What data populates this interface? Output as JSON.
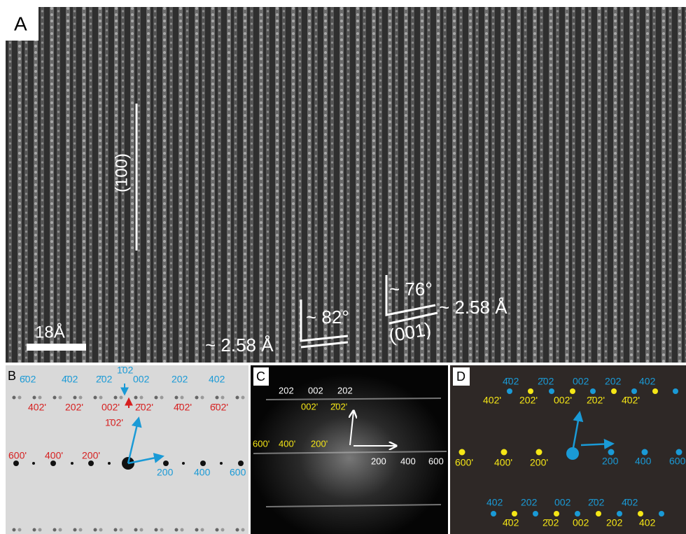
{
  "panel_a": {
    "label": "A",
    "direction_label": "(100)",
    "scale_bar": "18Å",
    "angle_1": "~ 82°",
    "spacing_1": "~ 2.58 Å",
    "angle_2": "~ 76°",
    "spacing_2": "~ 2.58 Å",
    "plane_label": "(001)"
  },
  "panel_b": {
    "label": "B",
    "top_blue": [
      "6̄02",
      "4̄02",
      "2̄02",
      "1̄02",
      "002",
      "202",
      "402"
    ],
    "top_red": [
      "402'",
      "202'",
      "002'",
      "2̄02'",
      "4̄02'",
      "6̄02'",
      "1̄02'"
    ],
    "middle_red": [
      "600'",
      "400'",
      "200'"
    ],
    "middle_blue": [
      "200",
      "400",
      "600"
    ]
  },
  "panel_c": {
    "label": "C",
    "top_white": [
      "202",
      "002",
      "202"
    ],
    "top_yellow": [
      "002'",
      "2̄02'"
    ],
    "middle_yellow": [
      "600'",
      "400'",
      "200'"
    ],
    "middle_white": [
      "200",
      "400",
      "600"
    ]
  },
  "panel_d": {
    "label": "D",
    "top_blue": [
      "4̄02",
      "2̄02",
      "002",
      "202",
      "402"
    ],
    "top_yellow": [
      "402'",
      "202'",
      "002'",
      "2̄02'",
      "4̄02'"
    ],
    "middle_yellow": [
      "600'",
      "400'",
      "200'"
    ],
    "middle_blue": [
      "200",
      "400",
      "600"
    ],
    "bottom_blue": [
      "402",
      "202",
      "002",
      "2̄02",
      "4̄02"
    ],
    "bottom_yellow": [
      "4̄02",
      "2̄02",
      "002",
      "202",
      "402"
    ]
  }
}
